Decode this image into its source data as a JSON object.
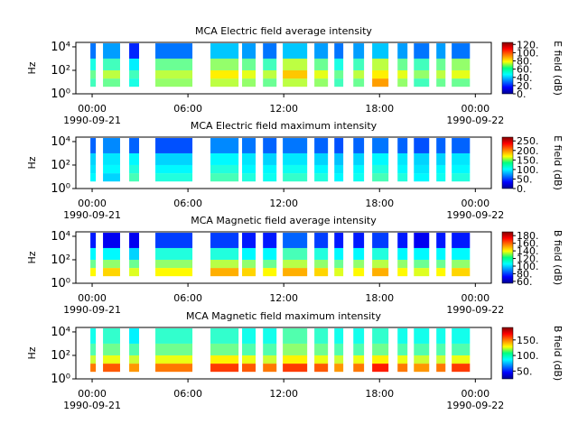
{
  "chart_data": [
    {
      "type": "heatmap",
      "title": "MCA  Electric field average intensity",
      "ylabel": "Hz",
      "colorbar_label": "E field (dB)",
      "colormap": "jet",
      "log_y": true,
      "xlim": [
        -1.02,
        25.0
      ],
      "xticks": [
        {
          "value": 0,
          "label": "00:00\n1990-09-21"
        },
        {
          "value": 6,
          "label": "06:00"
        },
        {
          "value": 12,
          "label": "12:00"
        },
        {
          "value": 18,
          "label": "18:00"
        },
        {
          "value": 24,
          "label": "00:00\n1990-09-22"
        }
      ],
      "ylim": [
        1,
        24000
      ],
      "yticks": [
        {
          "value": 1,
          "label": "10⁰"
        },
        {
          "value": 100,
          "label": "10²"
        },
        {
          "value": 10000,
          "label": "10⁴"
        }
      ],
      "zlim": [
        0,
        125
      ],
      "zticks": [
        {
          "value": 0,
          "label": "0."
        },
        {
          "value": 20,
          "label": "20."
        },
        {
          "value": 40,
          "label": "40."
        },
        {
          "value": 60,
          "label": "60."
        },
        {
          "value": 80,
          "label": "80."
        },
        {
          "value": 100,
          "label": "100."
        },
        {
          "value": 120,
          "label": "120."
        }
      ],
      "segments": [
        [
          -0.11,
          0.23
        ],
        [
          0.68,
          1.75
        ],
        [
          2.32,
          2.94
        ],
        [
          3.96,
          6.28
        ],
        [
          7.41,
          9.17
        ],
        [
          9.39,
          10.24
        ],
        [
          10.7,
          11.55
        ],
        [
          11.94,
          13.47
        ],
        [
          13.92,
          14.77
        ],
        [
          15.17,
          15.73
        ],
        [
          16.36,
          17.03
        ],
        [
          17.54,
          18.56
        ],
        [
          19.13,
          19.75
        ],
        [
          20.15,
          21.11
        ],
        [
          21.56,
          22.13
        ],
        [
          22.52,
          23.66
        ]
      ],
      "frequency_bins": [
        4,
        20,
        100,
        1000,
        20000
      ],
      "z": [
        [
          55,
          60,
          50,
          30
        ],
        [
          60,
          70,
          55,
          35
        ],
        [
          50,
          55,
          45,
          20
        ],
        [
          65,
          70,
          60,
          30
        ],
        [
          70,
          80,
          65,
          40
        ],
        [
          65,
          75,
          60,
          35
        ],
        [
          60,
          70,
          55,
          30
        ],
        [
          70,
          85,
          70,
          40
        ],
        [
          65,
          75,
          60,
          35
        ],
        [
          55,
          60,
          50,
          30
        ],
        [
          60,
          70,
          55,
          35
        ],
        [
          90,
          80,
          70,
          40
        ],
        [
          65,
          75,
          60,
          35
        ],
        [
          55,
          65,
          55,
          30
        ],
        [
          60,
          70,
          60,
          35
        ],
        [
          60,
          75,
          65,
          30
        ]
      ]
    },
    {
      "type": "heatmap",
      "title": "MCA  Electric field maximum intensity",
      "ylabel": "Hz",
      "colorbar_label": "E field (dB)",
      "colormap": "jet",
      "log_y": true,
      "xlim": [
        -1.02,
        25.0
      ],
      "xticks": [
        {
          "value": 0,
          "label": "00:00\n1990-09-21"
        },
        {
          "value": 6,
          "label": "06:00"
        },
        {
          "value": 12,
          "label": "12:00"
        },
        {
          "value": 18,
          "label": "18:00"
        },
        {
          "value": 24,
          "label": "00:00\n1990-09-22"
        }
      ],
      "ylim": [
        1,
        24000
      ],
      "yticks": [
        {
          "value": 1,
          "label": "10⁰"
        },
        {
          "value": 100,
          "label": "10²"
        },
        {
          "value": 10000,
          "label": "10⁴"
        }
      ],
      "zlim": [
        0,
        270
      ],
      "zticks": [
        {
          "value": 0,
          "label": "0."
        },
        {
          "value": 50,
          "label": "50."
        },
        {
          "value": 100,
          "label": "100."
        },
        {
          "value": 150,
          "label": "150."
        },
        {
          "value": 200,
          "label": "200."
        },
        {
          "value": 250,
          "label": "250."
        }
      ],
      "segments": [
        [
          -0.11,
          0.23
        ],
        [
          0.68,
          1.75
        ],
        [
          2.32,
          2.94
        ],
        [
          3.96,
          6.28
        ],
        [
          7.41,
          9.17
        ],
        [
          9.39,
          10.24
        ],
        [
          10.7,
          11.55
        ],
        [
          11.94,
          13.47
        ],
        [
          13.92,
          14.77
        ],
        [
          15.17,
          15.73
        ],
        [
          16.36,
          17.03
        ],
        [
          17.54,
          18.56
        ],
        [
          19.13,
          19.75
        ],
        [
          20.15,
          21.11
        ],
        [
          21.56,
          22.13
        ],
        [
          22.52,
          23.66
        ]
      ],
      "frequency_bins": [
        4,
        20,
        100,
        1000,
        20000
      ],
      "z": [
        [
          100,
          95,
          90,
          60
        ],
        [
          90,
          100,
          95,
          70
        ],
        [
          120,
          110,
          100,
          60
        ],
        [
          110,
          100,
          90,
          55
        ],
        [
          120,
          110,
          100,
          70
        ],
        [
          110,
          100,
          95,
          65
        ],
        [
          105,
          100,
          90,
          60
        ],
        [
          115,
          105,
          95,
          65
        ],
        [
          110,
          100,
          90,
          60
        ],
        [
          100,
          95,
          85,
          55
        ],
        [
          105,
          100,
          90,
          60
        ],
        [
          120,
          110,
          100,
          65
        ],
        [
          110,
          100,
          95,
          60
        ],
        [
          100,
          95,
          90,
          55
        ],
        [
          105,
          100,
          90,
          60
        ],
        [
          110,
          100,
          95,
          60
        ]
      ]
    },
    {
      "type": "heatmap",
      "title": "MCA  Magnetic field average intensity",
      "ylabel": "Hz",
      "colorbar_label": "B field (dB)",
      "colormap": "jet",
      "log_y": true,
      "xlim": [
        -1.02,
        25.0
      ],
      "xticks": [
        {
          "value": 0,
          "label": "00:00\n1990-09-21"
        },
        {
          "value": 6,
          "label": "06:00"
        },
        {
          "value": 12,
          "label": "12:00"
        },
        {
          "value": 18,
          "label": "18:00"
        },
        {
          "value": 24,
          "label": "00:00\n1990-09-22"
        }
      ],
      "ylim": [
        1,
        24000
      ],
      "yticks": [
        {
          "value": 1,
          "label": "10⁰"
        },
        {
          "value": 100,
          "label": "10²"
        },
        {
          "value": 10000,
          "label": "10⁴"
        }
      ],
      "zlim": [
        55,
        190
      ],
      "zticks": [
        {
          "value": 60,
          "label": "60."
        },
        {
          "value": 80,
          "label": "80."
        },
        {
          "value": 100,
          "label": "100."
        },
        {
          "value": 120,
          "label": "120."
        },
        {
          "value": 140,
          "label": "140."
        },
        {
          "value": 160,
          "label": "160."
        },
        {
          "value": 180,
          "label": "180."
        }
      ],
      "segments": [
        [
          -0.11,
          0.23
        ],
        [
          0.68,
          1.75
        ],
        [
          2.32,
          2.94
        ],
        [
          3.96,
          6.28
        ],
        [
          7.41,
          9.17
        ],
        [
          9.39,
          10.24
        ],
        [
          10.7,
          11.55
        ],
        [
          11.94,
          13.47
        ],
        [
          13.92,
          14.77
        ],
        [
          15.17,
          15.73
        ],
        [
          16.36,
          17.03
        ],
        [
          17.54,
          18.56
        ],
        [
          19.13,
          19.75
        ],
        [
          20.15,
          21.11
        ],
        [
          21.56,
          22.13
        ],
        [
          22.52,
          23.66
        ]
      ],
      "frequency_bins": [
        4,
        20,
        100,
        1000,
        20000
      ],
      "z": [
        [
          140,
          120,
          105,
          75
        ],
        [
          145,
          125,
          105,
          70
        ],
        [
          135,
          120,
          100,
          70
        ],
        [
          140,
          125,
          110,
          80
        ],
        [
          150,
          130,
          110,
          80
        ],
        [
          145,
          125,
          105,
          75
        ],
        [
          140,
          120,
          105,
          75
        ],
        [
          150,
          130,
          115,
          85
        ],
        [
          145,
          125,
          110,
          80
        ],
        [
          135,
          120,
          105,
          75
        ],
        [
          140,
          125,
          105,
          75
        ],
        [
          150,
          130,
          110,
          80
        ],
        [
          140,
          125,
          105,
          75
        ],
        [
          135,
          120,
          105,
          70
        ],
        [
          140,
          120,
          105,
          75
        ],
        [
          145,
          125,
          105,
          75
        ]
      ]
    },
    {
      "type": "heatmap",
      "title": "MCA  Magnetic field maximum intensity",
      "ylabel": "Hz",
      "colorbar_label": "B field (dB)",
      "colormap": "jet",
      "log_y": true,
      "xlim": [
        -1.02,
        25.0
      ],
      "xticks": [
        {
          "value": 0,
          "label": "00:00\n1990-09-21"
        },
        {
          "value": 6,
          "label": "06:00"
        },
        {
          "value": 12,
          "label": "12:00"
        },
        {
          "value": 18,
          "label": "18:00"
        },
        {
          "value": 24,
          "label": "00:00\n1990-09-22"
        }
      ],
      "ylim": [
        1,
        24000
      ],
      "yticks": [
        {
          "value": 1,
          "label": "10⁰"
        },
        {
          "value": 100,
          "label": "10²"
        },
        {
          "value": 10000,
          "label": "10⁴"
        }
      ],
      "zlim": [
        25,
        190
      ],
      "zticks": [
        {
          "value": 50,
          "label": "50."
        },
        {
          "value": 100,
          "label": "100."
        },
        {
          "value": 150,
          "label": "150."
        }
      ],
      "segments": [
        [
          -0.11,
          0.23
        ],
        [
          0.68,
          1.75
        ],
        [
          2.32,
          2.94
        ],
        [
          3.96,
          6.28
        ],
        [
          7.41,
          9.17
        ],
        [
          9.39,
          10.24
        ],
        [
          10.7,
          11.55
        ],
        [
          11.94,
          13.47
        ],
        [
          13.92,
          14.77
        ],
        [
          15.17,
          15.73
        ],
        [
          16.36,
          17.03
        ],
        [
          17.54,
          18.56
        ],
        [
          19.13,
          19.75
        ],
        [
          20.15,
          21.11
        ],
        [
          21.56,
          22.13
        ],
        [
          22.52,
          23.66
        ]
      ],
      "frequency_bins": [
        4,
        20,
        100,
        1000,
        20000
      ],
      "z": [
        [
          150,
          120,
          100,
          90
        ],
        [
          155,
          125,
          105,
          95
        ],
        [
          145,
          120,
          100,
          85
        ],
        [
          150,
          125,
          105,
          95
        ],
        [
          160,
          130,
          105,
          95
        ],
        [
          155,
          125,
          100,
          90
        ],
        [
          150,
          120,
          100,
          90
        ],
        [
          160,
          130,
          110,
          100
        ],
        [
          155,
          125,
          105,
          95
        ],
        [
          145,
          120,
          100,
          90
        ],
        [
          150,
          125,
          100,
          90
        ],
        [
          165,
          130,
          105,
          95
        ],
        [
          150,
          125,
          100,
          90
        ],
        [
          145,
          120,
          100,
          90
        ],
        [
          150,
          120,
          100,
          90
        ],
        [
          160,
          125,
          100,
          90
        ]
      ]
    }
  ]
}
